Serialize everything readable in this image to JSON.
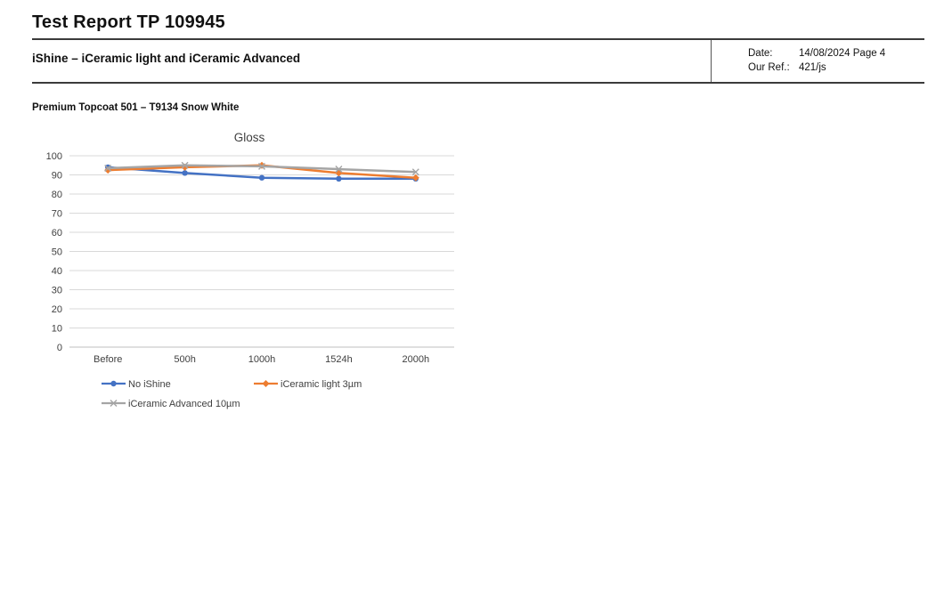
{
  "header": {
    "title": "Test Report TP 109945",
    "subtitle": "iShine – iCeramic light and iCeramic Advanced",
    "date_label": "Date:",
    "date_value": "14/08/2024 Page 4",
    "ref_label": "Our Ref.:",
    "ref_value": "421/js"
  },
  "section": {
    "product_title": "Premium Topcoat 501 – T9134 Snow White"
  },
  "chart_data": {
    "type": "line",
    "title": "Gloss",
    "categories": [
      "Before",
      "500h",
      "1000h",
      "1524h",
      "2000h"
    ],
    "series": [
      {
        "name": "No iShine",
        "color": "#4472C4",
        "marker": "circle",
        "values": [
          94,
          91,
          88.5,
          88,
          88
        ]
      },
      {
        "name": "iCeramic light 3µm",
        "color": "#ED7D31",
        "marker": "diamond",
        "values": [
          92.5,
          94,
          95,
          91,
          88.5
        ]
      },
      {
        "name": "iCeramic Advanced 10µm",
        "color": "#A5A5A5",
        "marker": "x",
        "values": [
          93.5,
          95,
          94.5,
          93,
          91.5
        ]
      }
    ],
    "ylim": [
      0,
      100
    ],
    "ytick_step": 10,
    "grid": true,
    "gridline_color": "#D9D9D9",
    "axis_line_color": "#BFBFBF",
    "label_color": "#404040",
    "legend_position": "bottom"
  }
}
